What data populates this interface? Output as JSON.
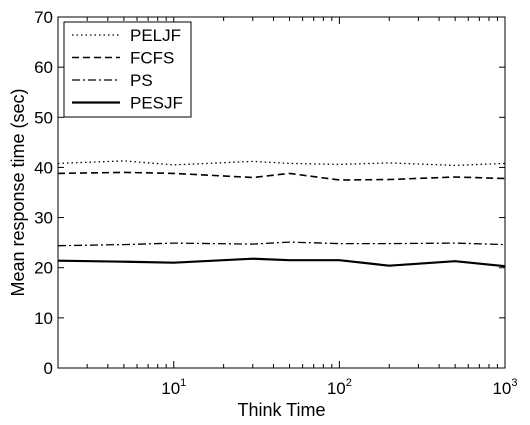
{
  "chart_data": {
    "type": "line",
    "title": "",
    "xlabel": "Think Time",
    "ylabel": "Mean response time (sec)",
    "xscale": "log",
    "xlim": [
      2,
      1000
    ],
    "ylim": [
      0,
      70
    ],
    "y_ticks": [
      "0",
      "10",
      "20",
      "30",
      "40",
      "50",
      "60",
      "70"
    ],
    "x_ticks": [
      {
        "base": "10",
        "exp": "1",
        "value": 10
      },
      {
        "base": "10",
        "exp": "2",
        "value": 100
      },
      {
        "base": "10",
        "exp": "3",
        "value": 1000
      }
    ],
    "legend_position": "top-left",
    "grid": false,
    "series": [
      {
        "name": "PELJF",
        "style": "dotted",
        "x": [
          2,
          5,
          10,
          30,
          50,
          100,
          200,
          500,
          1000
        ],
        "y": [
          40.8,
          41.3,
          40.5,
          41.2,
          40.8,
          40.6,
          40.9,
          40.4,
          40.8
        ]
      },
      {
        "name": "FCFS",
        "style": "dashed",
        "x": [
          2,
          5,
          10,
          30,
          50,
          100,
          200,
          500,
          1000
        ],
        "y": [
          38.8,
          39.0,
          38.8,
          38.0,
          38.8,
          37.5,
          37.6,
          38.1,
          37.8
        ]
      },
      {
        "name": "PS",
        "style": "dashdot",
        "x": [
          2,
          5,
          10,
          30,
          50,
          100,
          200,
          500,
          1000
        ],
        "y": [
          24.4,
          24.6,
          24.9,
          24.7,
          25.1,
          24.8,
          24.8,
          24.9,
          24.6
        ]
      },
      {
        "name": "PESJF",
        "style": "solid",
        "x": [
          2,
          5,
          10,
          30,
          50,
          100,
          200,
          500,
          1000
        ],
        "y": [
          21.4,
          21.2,
          21.0,
          21.8,
          21.5,
          21.5,
          20.4,
          21.3,
          20.3
        ]
      }
    ]
  }
}
